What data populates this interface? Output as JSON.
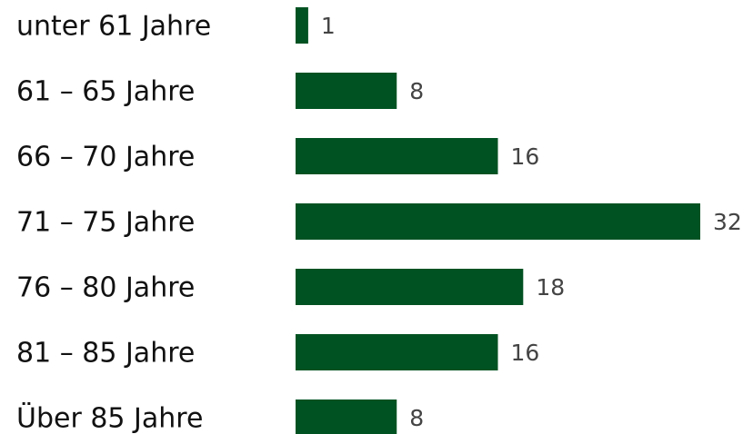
{
  "chart_data": {
    "type": "bar",
    "orientation": "horizontal",
    "categories": [
      "unter 61 Jahre",
      "61 – 65 Jahre",
      "66 – 70 Jahre",
      "71 – 75 Jahre",
      "76 – 80 Jahre",
      "81 – 85 Jahre",
      "Über 85 Jahre"
    ],
    "values": [
      1,
      8,
      16,
      32,
      18,
      16,
      8
    ],
    "color": "#005222"
  }
}
